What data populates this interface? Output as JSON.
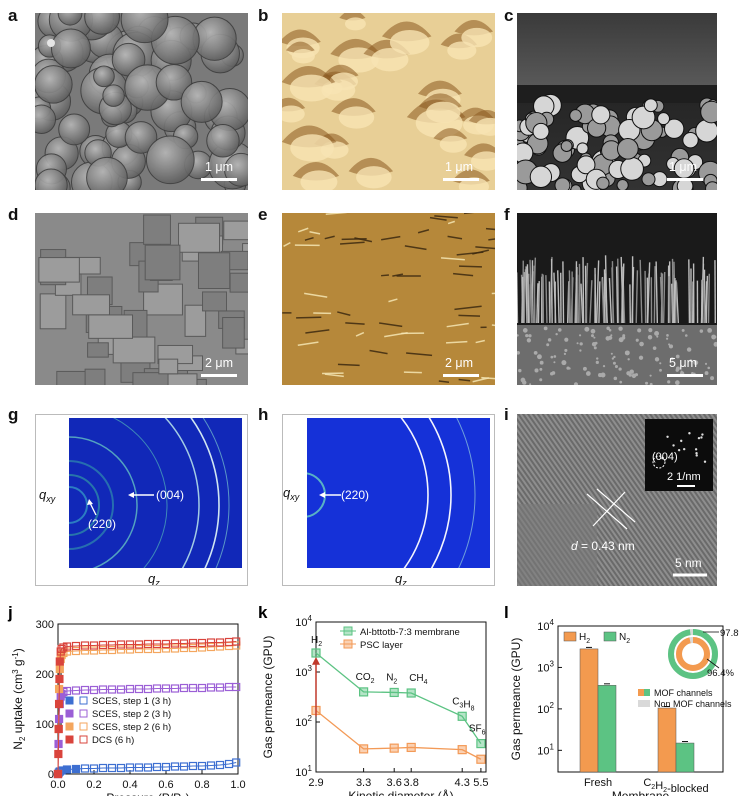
{
  "panels": {
    "a": {
      "letter": "a",
      "scale": "1 μm"
    },
    "b": {
      "letter": "b",
      "scale": "1 μm"
    },
    "c": {
      "letter": "c",
      "scale": "1 μm"
    },
    "d": {
      "letter": "d",
      "scale": "2 μm"
    },
    "e": {
      "letter": "e",
      "scale": "2 μm"
    },
    "f": {
      "letter": "f",
      "scale": "5 μm"
    },
    "g": {
      "letter": "g",
      "qxy": "q",
      "qxy_sub": "xy",
      "qz": "q",
      "qz_sub": "z",
      "peak1": "(004)",
      "peak2": "(220)"
    },
    "h": {
      "letter": "h",
      "qxy": "q",
      "qxy_sub": "xy",
      "qz": "q",
      "qz_sub": "z",
      "peak1": "(220)"
    },
    "i": {
      "letter": "i",
      "inset_label": "(004)",
      "inset_scale": "2 1/nm",
      "d_label": "d",
      "d_value": " = 0.43 nm",
      "scale": "5 nm"
    }
  },
  "chart_data": [
    {
      "panel": "j",
      "type": "scatter",
      "ylabel": "N2 uptake (cm3 g-1)",
      "xlabel": "Pressure (P/P0)",
      "xlim": [
        0,
        1
      ],
      "ylim": [
        0,
        300
      ],
      "xticks": [
        "0.0",
        "0.2",
        "0.4",
        "0.6",
        "0.8",
        "1.0"
      ],
      "yticks": [
        "0",
        "100",
        "200",
        "300"
      ],
      "legend": [
        "SCES, step 1 (3 h)",
        "SCES, step 2 (3 h)",
        "SCES, step 2 (6 h)",
        "DCS (6 h)"
      ],
      "colors": [
        "#3d6fd1",
        "#9b5fd6",
        "#f4a65e",
        "#d9443c"
      ],
      "series": [
        {
          "name": "SCES, step 1 (3 h)",
          "x": [
            0.0,
            0.005,
            0.01,
            0.02,
            0.05,
            0.1,
            0.15,
            0.2,
            0.25,
            0.3,
            0.35,
            0.4,
            0.45,
            0.5,
            0.55,
            0.6,
            0.65,
            0.7,
            0.75,
            0.8,
            0.85,
            0.9,
            0.95,
            0.99
          ],
          "y": [
            0,
            3,
            5,
            7,
            9,
            10,
            11,
            11,
            12,
            12,
            12,
            13,
            13,
            13,
            14,
            14,
            15,
            15,
            16,
            16,
            17,
            18,
            20,
            23
          ]
        },
        {
          "name": "SCES, step 2 (3 h)",
          "x": [
            0.0,
            0.003,
            0.006,
            0.01,
            0.015,
            0.02,
            0.03,
            0.05,
            0.1,
            0.15,
            0.2,
            0.25,
            0.3,
            0.35,
            0.4,
            0.45,
            0.5,
            0.55,
            0.6,
            0.65,
            0.7,
            0.75,
            0.8,
            0.85,
            0.9,
            0.95,
            0.99
          ],
          "y": [
            0,
            60,
            110,
            140,
            155,
            160,
            164,
            166,
            167,
            168,
            168,
            169,
            169,
            169,
            170,
            170,
            170,
            171,
            171,
            171,
            172,
            172,
            172,
            173,
            173,
            174,
            174
          ]
        },
        {
          "name": "SCES, step 2 (6 h)",
          "x": [
            0.0,
            0.003,
            0.006,
            0.01,
            0.015,
            0.02,
            0.03,
            0.05,
            0.1,
            0.15,
            0.2,
            0.25,
            0.3,
            0.35,
            0.4,
            0.45,
            0.5,
            0.55,
            0.6,
            0.65,
            0.7,
            0.75,
            0.8,
            0.85,
            0.9,
            0.95,
            0.99
          ],
          "y": [
            0,
            90,
            170,
            210,
            230,
            238,
            242,
            245,
            246,
            247,
            247,
            248,
            248,
            249,
            249,
            250,
            250,
            250,
            251,
            251,
            252,
            252,
            253,
            254,
            255,
            256,
            257
          ]
        },
        {
          "name": "DCS (6 h)",
          "x": [
            0.0,
            0.002,
            0.004,
            0.006,
            0.008,
            0.01,
            0.015,
            0.02,
            0.03,
            0.05,
            0.1,
            0.15,
            0.2,
            0.25,
            0.3,
            0.35,
            0.4,
            0.45,
            0.5,
            0.55,
            0.6,
            0.65,
            0.7,
            0.75,
            0.8,
            0.85,
            0.9,
            0.95,
            0.99
          ],
          "y": [
            0,
            40,
            90,
            140,
            190,
            225,
            245,
            250,
            253,
            255,
            256,
            257,
            257,
            258,
            258,
            259,
            259,
            259,
            260,
            260,
            260,
            261,
            261,
            262,
            262,
            263,
            263,
            264,
            265
          ]
        }
      ]
    },
    {
      "panel": "k",
      "type": "line",
      "ylabel": "Gas permeance (GPU)",
      "xlabel": "Kinetic diameter (Å)",
      "yscale": "log",
      "ylim": [
        10,
        10000
      ],
      "xticks": [
        "2.9",
        "3.3",
        "3.6",
        "3.8",
        "4.3",
        "5.5"
      ],
      "gases": [
        "H2",
        "CO2",
        "N2",
        "CH4",
        "C3H8",
        "SF6"
      ],
      "legend": [
        "Al-bttotb-7:3 membrane",
        "PSC layer"
      ],
      "colors": [
        "#5cc383",
        "#f39a57"
      ],
      "series": [
        {
          "name": "Al-bttotb-7:3 membrane",
          "x": [
            2.9,
            3.3,
            3.64,
            3.8,
            4.3,
            5.5
          ],
          "y": [
            2400,
            400,
            390,
            380,
            130,
            37
          ]
        },
        {
          "name": "PSC layer",
          "x": [
            2.9,
            3.3,
            3.64,
            3.8,
            4.3,
            5.5
          ],
          "y": [
            170,
            29,
            30,
            31,
            28,
            18
          ]
        }
      ]
    },
    {
      "panel": "l",
      "type": "bar",
      "ylabel": "Gas permeance (GPU)",
      "xlabel": "Membrane",
      "yscale": "log",
      "ylim": [
        3,
        10000
      ],
      "categories": [
        "Fresh",
        "C2H2-blocked"
      ],
      "legend": [
        "H2",
        "N2"
      ],
      "colors": [
        "#f39a4f",
        "#5cc383"
      ],
      "series": [
        {
          "name": "H2",
          "values": [
            2800,
            105
          ]
        },
        {
          "name": "N2",
          "values": [
            370,
            15
          ]
        }
      ],
      "donut": {
        "outer_pct": "97.8%",
        "inner_pct": "96.4%",
        "legend": [
          "MOF channels",
          "Non MOF channels"
        ],
        "colors": [
          "#f39a4f",
          "#5cc383",
          "#d9d9d9"
        ]
      }
    }
  ]
}
